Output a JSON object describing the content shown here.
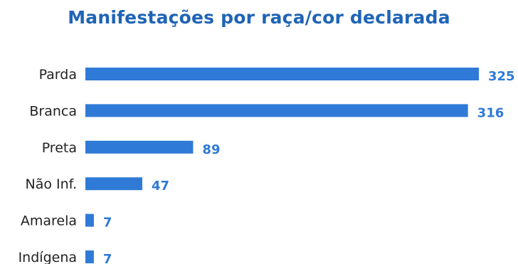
{
  "chart_data": {
    "type": "bar",
    "orientation": "horizontal",
    "title": "Manifestações por raça/cor declarada",
    "categories": [
      "Parda",
      "Branca",
      "Preta",
      "Não Inf.",
      "Amarela",
      "Indígena"
    ],
    "values": [
      325,
      316,
      89,
      47,
      7,
      7
    ],
    "xlim": [
      0,
      325
    ],
    "grid": false,
    "legend": "none",
    "colors": {
      "bar": "#2f7ad6",
      "value_label": "#2f7ad6",
      "title": "#1f64b5"
    }
  }
}
